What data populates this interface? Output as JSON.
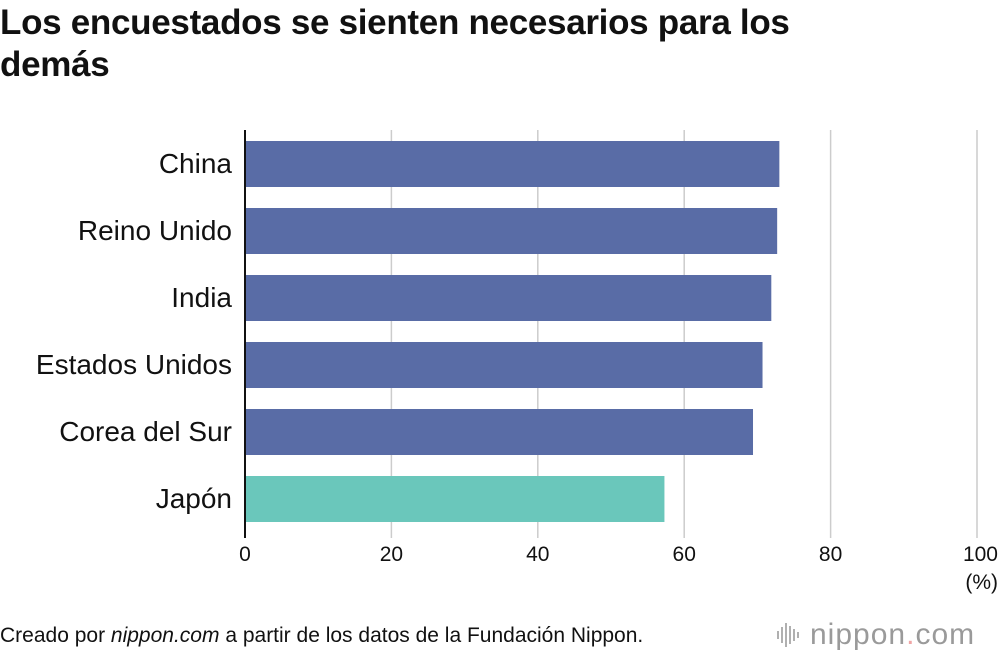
{
  "title": "Los encuestados se sienten necesarios para los demás",
  "chart_data": {
    "type": "bar",
    "orientation": "horizontal",
    "title": "Los encuestados se sienten necesarios para los demás",
    "categories": [
      "China",
      "Reino Unido",
      "India",
      "Estados Unidos",
      "Corea del Sur",
      "Japón"
    ],
    "values": [
      73.0,
      72.7,
      71.9,
      70.7,
      69.4,
      57.3
    ],
    "highlight_category": "Japón",
    "colors": {
      "default": "#596ca6",
      "highlight": "#6ac7bb",
      "grid": "#cccccc",
      "axis": "#111111"
    },
    "xlim": [
      0,
      100
    ],
    "xticks": [
      0,
      20,
      40,
      60,
      80,
      100
    ],
    "xlabel": "(%)",
    "ylabel": "",
    "grid": true
  },
  "footer": {
    "prefix": "Creado por ",
    "source": "nippon.com",
    "suffix": " a partir de los datos de la Fundación Nippon."
  },
  "logo": {
    "name": "nippon",
    "dot": ".",
    "tld": "com"
  }
}
